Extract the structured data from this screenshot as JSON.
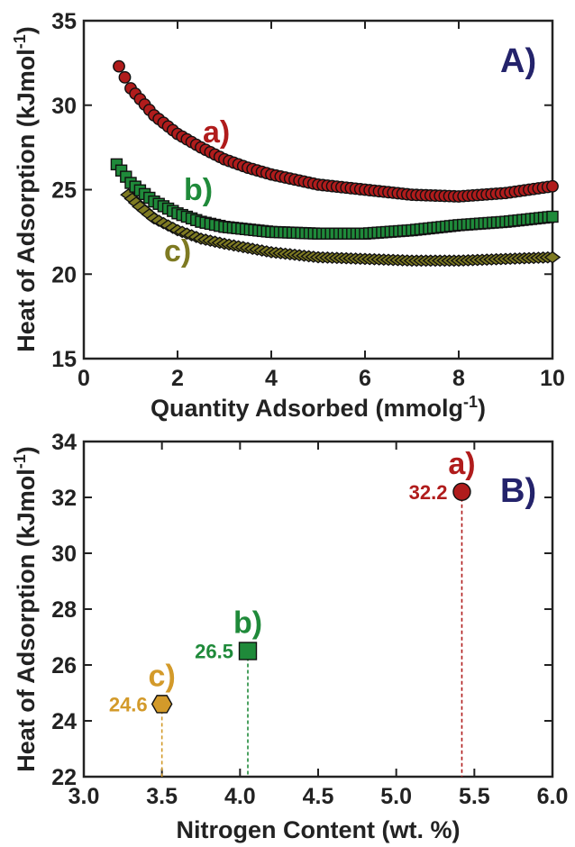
{
  "chart_data": [
    {
      "type": "scatter",
      "panel_label": "A)",
      "xlabel": "Quantity Adsorbed (mmolg",
      "xlabel_sup": "-1",
      "xlabel_end": ")",
      "ylabel": "Heat of Adsorption (kJmol",
      "ylabel_sup": "-1",
      "ylabel_end": ")",
      "xlim": [
        0,
        10
      ],
      "ylim": [
        15,
        35
      ],
      "xticks": [
        "0",
        "2",
        "4",
        "6",
        "8",
        "10"
      ],
      "yticks": [
        "15",
        "20",
        "25",
        "30",
        "35"
      ],
      "grid": false,
      "series": [
        {
          "name": "a)",
          "color": "#b01c1c",
          "marker": "circle",
          "x": [
            0.75,
            1.0,
            1.5,
            2.0,
            2.5,
            3.0,
            3.5,
            4.0,
            5.0,
            6.0,
            7.0,
            8.0,
            9.0,
            10.0
          ],
          "y": [
            32.3,
            31.0,
            29.4,
            28.3,
            27.5,
            26.8,
            26.3,
            25.9,
            25.3,
            25.0,
            24.7,
            24.6,
            24.8,
            25.2
          ]
        },
        {
          "name": "b)",
          "color": "#1f8a3a",
          "marker": "square",
          "x": [
            0.7,
            1.0,
            1.5,
            2.0,
            2.5,
            3.0,
            4.0,
            5.0,
            6.0,
            7.0,
            8.0,
            9.0,
            10.0
          ],
          "y": [
            26.5,
            25.4,
            24.3,
            23.6,
            23.1,
            22.8,
            22.5,
            22.4,
            22.4,
            22.6,
            22.9,
            23.1,
            23.4
          ]
        },
        {
          "name": "c)",
          "color": "#7e7a22",
          "marker": "diamond",
          "x": [
            0.95,
            1.2,
            1.5,
            2.0,
            2.5,
            3.0,
            4.0,
            5.0,
            6.0,
            7.0,
            8.0,
            9.0,
            10.0
          ],
          "y": [
            24.7,
            24.0,
            23.3,
            22.6,
            22.1,
            21.8,
            21.3,
            21.0,
            20.9,
            20.8,
            20.8,
            20.9,
            21.0
          ]
        }
      ]
    },
    {
      "type": "scatter",
      "panel_label": "B)",
      "xlabel": "Nitrogen Content (wt. %)",
      "ylabel": "Heat of Adsorption (kJmol",
      "ylabel_sup": "-1",
      "ylabel_end": ")",
      "xlim": [
        3.0,
        6.0
      ],
      "ylim": [
        22,
        34
      ],
      "xticks": [
        "3.0",
        "3.5",
        "4.0",
        "4.5",
        "5.0",
        "5.5",
        "6.0"
      ],
      "yticks": [
        "22",
        "24",
        "26",
        "28",
        "30",
        "32",
        "34"
      ],
      "grid": false,
      "points": [
        {
          "name": "a)",
          "x": 5.42,
          "y": 32.2,
          "label": "32.2",
          "color": "#b01c1c",
          "marker": "circle"
        },
        {
          "name": "b)",
          "x": 4.05,
          "y": 26.5,
          "label": "26.5",
          "color": "#1f8a3a",
          "marker": "square"
        },
        {
          "name": "c)",
          "x": 3.5,
          "y": 24.6,
          "label": "24.6",
          "color": "#d39a2a",
          "marker": "hexagon"
        }
      ]
    }
  ]
}
